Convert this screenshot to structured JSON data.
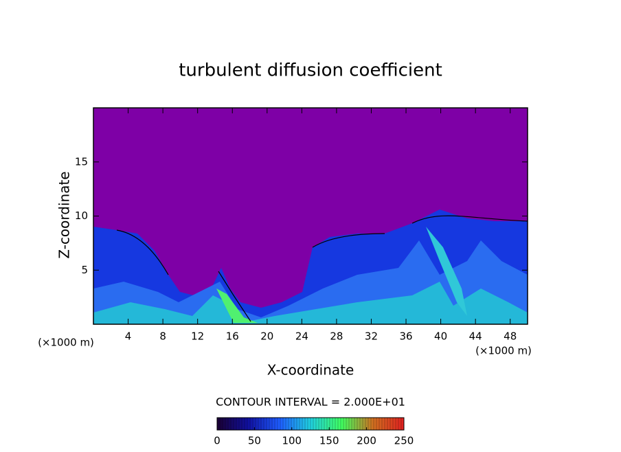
{
  "chart_data": {
    "type": "contour",
    "title": "turbulent diffusion coefficient",
    "x_label": "X-coordinate",
    "y_label": "Z-coordinate",
    "x_unit_left": "(×1000 m)",
    "x_unit_right": "(×1000 m)",
    "xlim": [
      0,
      50
    ],
    "xticks": [
      4,
      8,
      12,
      16,
      20,
      24,
      28,
      32,
      36,
      40,
      44,
      48
    ],
    "ylim": [
      0,
      20
    ],
    "yticks": [
      5,
      10,
      15
    ],
    "contour_interval_label": "CONTOUR INTERVAL = 2.000E+01",
    "colorbar": {
      "lim": [
        0,
        250
      ],
      "ticks": [
        0,
        50,
        100,
        150,
        200,
        250
      ],
      "colors": [
        "#1a0033",
        "#1010a0",
        "#1e5cff",
        "#20d0e0",
        "#40ff60",
        "#d07020",
        "#e02020"
      ]
    }
  }
}
